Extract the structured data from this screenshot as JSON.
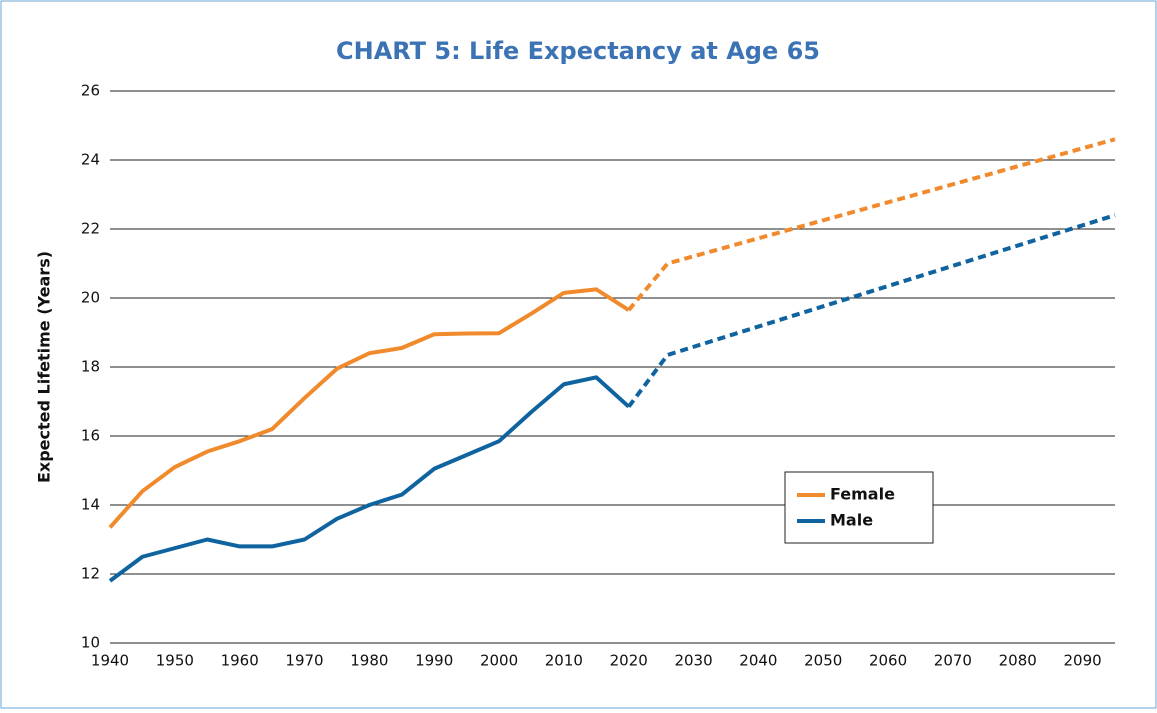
{
  "chart_data": {
    "type": "line",
    "title": "CHART 5: Life Expectancy at Age 65",
    "y_label": "Expected Lifetime (Years)",
    "xlim": [
      1940,
      2095
    ],
    "xticks": [
      1940,
      1950,
      1960,
      1970,
      1980,
      1990,
      2000,
      2010,
      2020,
      2030,
      2040,
      2050,
      2060,
      2070,
      2080,
      2090
    ],
    "ylim": [
      10,
      26
    ],
    "yticks": [
      10,
      12,
      14,
      16,
      18,
      20,
      22,
      24,
      26
    ],
    "grid": true,
    "series": [
      {
        "name": "Female",
        "color": "#f08a2c",
        "x": [
          1940,
          1945,
          1950,
          1955,
          1960,
          1965,
          1970,
          1975,
          1980,
          1985,
          1990,
          1995,
          2000,
          2005,
          2010,
          2015,
          2020
        ],
        "values": [
          13.35,
          14.4,
          15.1,
          15.55,
          15.85,
          16.2,
          17.1,
          17.95,
          18.4,
          18.55,
          18.95,
          18.97,
          18.98,
          19.55,
          20.15,
          20.25,
          19.65
        ],
        "projection": {
          "x": [
            2020,
            2026,
            2095
          ],
          "values": [
            19.65,
            21.0,
            24.6
          ]
        }
      },
      {
        "name": "Male",
        "color": "#0f64a0",
        "x": [
          1940,
          1945,
          1950,
          1955,
          1960,
          1965,
          1970,
          1975,
          1980,
          1985,
          1990,
          1995,
          2000,
          2005,
          2010,
          2015,
          2020
        ],
        "values": [
          11.8,
          12.5,
          12.75,
          13.0,
          12.8,
          12.8,
          13.0,
          13.6,
          14.0,
          14.3,
          15.05,
          15.45,
          15.85,
          16.7,
          17.5,
          17.7,
          16.85
        ],
        "projection": {
          "x": [
            2020,
            2026,
            2095
          ],
          "values": [
            16.85,
            18.35,
            22.4
          ]
        }
      }
    ]
  }
}
